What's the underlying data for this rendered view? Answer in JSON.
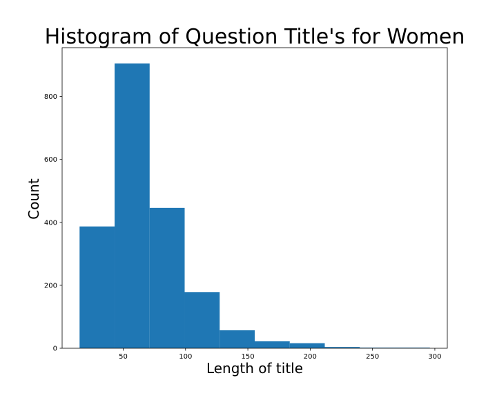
{
  "chart_data": {
    "type": "bar",
    "title": "Histogram of Question Title's for Women",
    "xlabel": "Length of title",
    "ylabel": "Count",
    "bins": [
      {
        "x0": 15.0,
        "x1": 43.1,
        "count": 387
      },
      {
        "x0": 43.1,
        "x1": 71.2,
        "count": 905
      },
      {
        "x0": 71.2,
        "x1": 99.3,
        "count": 446
      },
      {
        "x0": 99.3,
        "x1": 127.4,
        "count": 178
      },
      {
        "x0": 127.4,
        "x1": 155.5,
        "count": 57
      },
      {
        "x0": 155.5,
        "x1": 183.6,
        "count": 22
      },
      {
        "x0": 183.6,
        "x1": 211.7,
        "count": 16
      },
      {
        "x0": 211.7,
        "x1": 239.8,
        "count": 4
      },
      {
        "x0": 239.8,
        "x1": 267.9,
        "count": 2
      },
      {
        "x0": 267.9,
        "x1": 296.0,
        "count": 2
      }
    ],
    "xlim": [
      1,
      310
    ],
    "ylim": [
      0,
      955
    ],
    "xticks": [
      50,
      100,
      150,
      200,
      250,
      300
    ],
    "yticks": [
      0,
      200,
      400,
      600,
      800
    ],
    "bar_color": "#1f77b4",
    "grid": false,
    "legend": "none"
  }
}
